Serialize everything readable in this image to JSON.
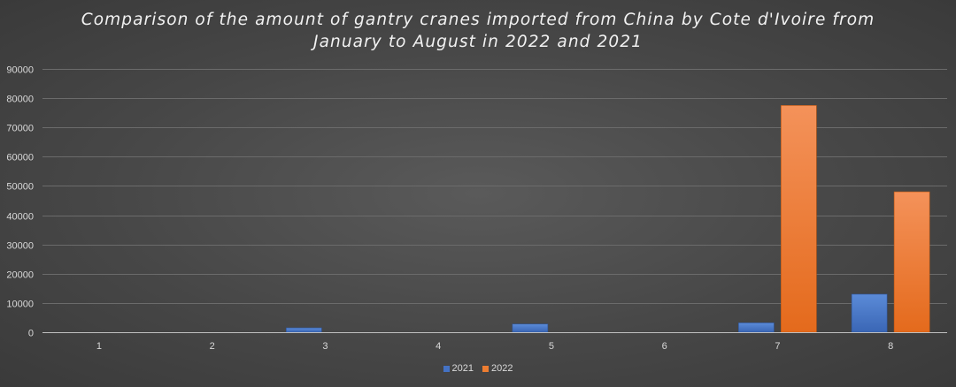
{
  "chart_data": {
    "type": "bar",
    "title_lines": [
      "Comparison of the amount of gantry cranes imported from China by Cote d'Ivoire from",
      "January to August in 2022 and 2021"
    ],
    "categories": [
      "1",
      "2",
      "3",
      "4",
      "5",
      "6",
      "7",
      "8"
    ],
    "series": [
      {
        "name": "2021",
        "color": "#4472c4",
        "values": [
          0,
          0,
          1500,
          0,
          2800,
          0,
          3200,
          13000
        ]
      },
      {
        "name": "2022",
        "color": "#ed7d31",
        "values": [
          0,
          0,
          0,
          0,
          0,
          0,
          77500,
          48000
        ]
      }
    ],
    "ylim": [
      0,
      90000
    ],
    "yticks": [
      0,
      10000,
      20000,
      30000,
      40000,
      50000,
      60000,
      70000,
      80000,
      90000
    ],
    "grid": true,
    "legend_position": "bottom",
    "xlabel": "",
    "ylabel": ""
  }
}
